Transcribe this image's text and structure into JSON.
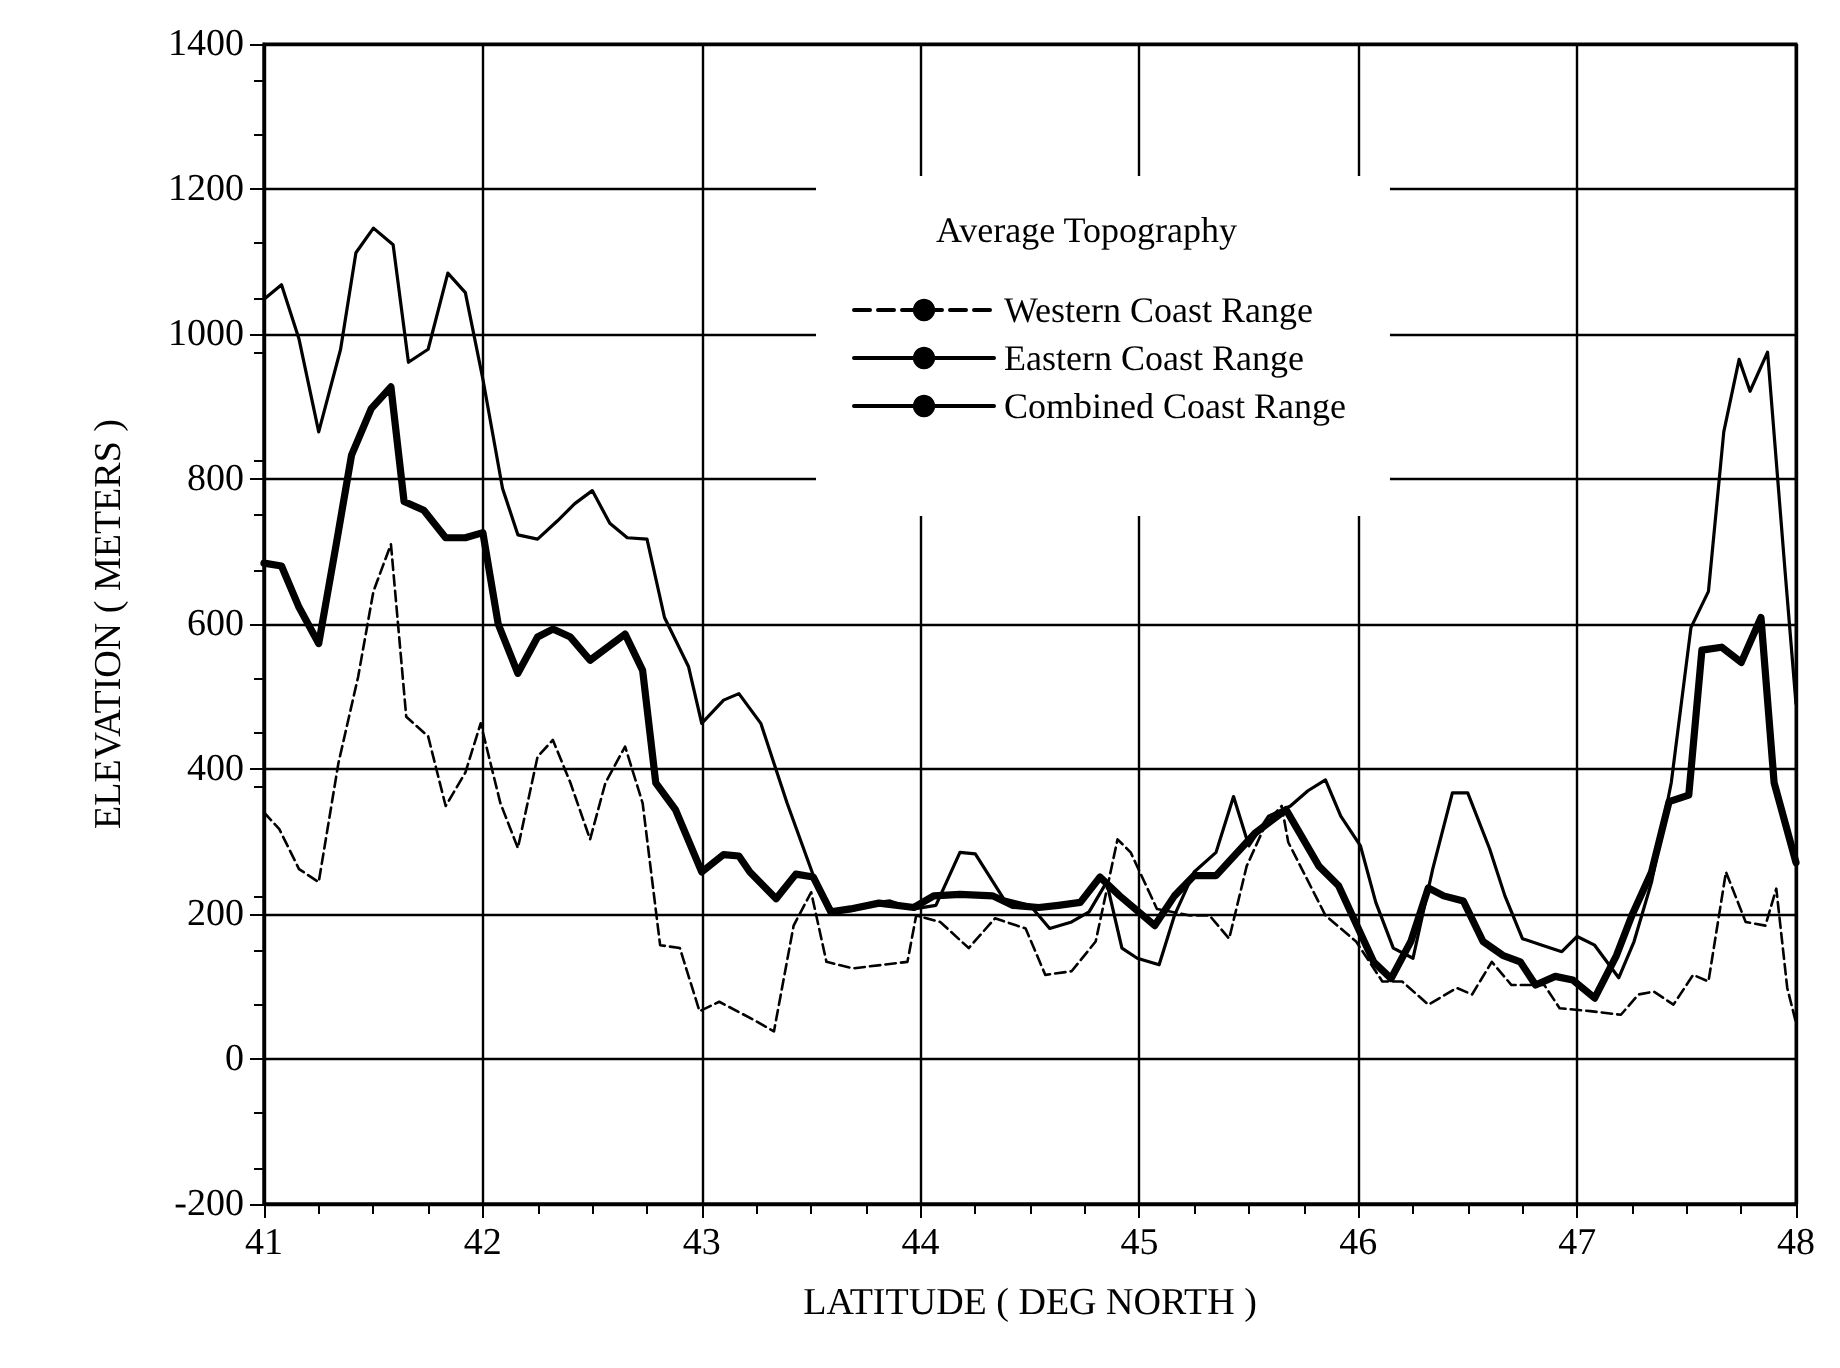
{
  "chart_data": {
    "type": "line",
    "xlabel": "LATITUDE ( DEG NORTH )",
    "ylabel": "ELEVATION ( METERS )",
    "legend_title": "Average Topography",
    "xlim": [
      41,
      48
    ],
    "ylim": [
      -200,
      1400
    ],
    "xticks": [
      41,
      42,
      43,
      44,
      45,
      46,
      47,
      48
    ],
    "yticks": [
      -200,
      0,
      200,
      400,
      600,
      800,
      1000,
      1200,
      1400
    ],
    "grid": true,
    "legend": "top right",
    "marker": "none",
    "series": [
      {
        "name": "Western Coast Range",
        "color": "#000000",
        "line_style": "dashed",
        "x": [
          41.0,
          41.07,
          41.16,
          41.25,
          41.34,
          41.43,
          41.5,
          41.58,
          41.65,
          41.75,
          41.83,
          41.92,
          41.99,
          42.08,
          42.16,
          42.25,
          42.32,
          42.4,
          42.49,
          42.56,
          42.65,
          42.73,
          42.81,
          42.9,
          42.99,
          43.08,
          43.25,
          43.33,
          43.42,
          43.5,
          43.57,
          43.69,
          43.83,
          43.94,
          43.98,
          44.09,
          44.22,
          44.34,
          44.48,
          44.57,
          44.69,
          44.8,
          44.9,
          44.96,
          45.08,
          45.23,
          45.32,
          45.41,
          45.49,
          45.58,
          45.65,
          45.68,
          45.85,
          45.99,
          46.11,
          46.2,
          46.32,
          46.45,
          46.52,
          46.61,
          46.7,
          46.85,
          46.92,
          47.06,
          47.2,
          47.28,
          47.35,
          47.44,
          47.53,
          47.6,
          47.68,
          47.77,
          47.86,
          47.91,
          47.96,
          48.0
        ],
        "values": [
          340,
          317,
          262,
          244,
          408,
          527,
          645,
          710,
          472,
          445,
          349,
          395,
          463,
          353,
          291,
          417,
          440,
          381,
          303,
          381,
          431,
          353,
          157,
          153,
          66,
          79,
          52,
          38,
          184,
          230,
          134,
          125,
          130,
          134,
          198,
          189,
          153,
          194,
          180,
          116,
          121,
          162,
          303,
          285,
          207,
          198,
          198,
          166,
          266,
          326,
          349,
          299,
          198,
          162,
          107,
          107,
          75,
          98,
          89,
          134,
          102,
          102,
          70,
          66,
          61,
          89,
          93,
          75,
          116,
          107,
          258,
          189,
          184,
          235,
          98,
          50
        ]
      },
      {
        "name": "Eastern Coast Range",
        "color": "#000000",
        "line_style": "solid",
        "x": [
          41.0,
          41.08,
          41.16,
          41.25,
          41.35,
          41.42,
          41.5,
          41.59,
          41.66,
          41.75,
          41.84,
          41.92,
          42.0,
          42.09,
          42.16,
          42.25,
          42.34,
          42.42,
          42.5,
          42.58,
          42.66,
          42.75,
          42.83,
          42.94,
          43.0,
          43.1,
          43.17,
          43.27,
          43.39,
          43.51,
          43.6,
          43.69,
          43.78,
          43.86,
          43.97,
          44.07,
          44.18,
          44.25,
          44.38,
          44.5,
          44.59,
          44.69,
          44.77,
          44.85,
          44.92,
          44.99,
          45.09,
          45.16,
          45.25,
          45.35,
          45.43,
          45.5,
          45.59,
          45.69,
          45.77,
          45.85,
          45.92,
          46.01,
          46.08,
          46.16,
          46.25,
          46.34,
          46.43,
          46.5,
          46.6,
          46.67,
          46.75,
          46.84,
          46.93,
          47.0,
          47.08,
          47.19,
          47.26,
          47.34,
          47.43,
          47.52,
          47.6,
          47.67,
          47.74,
          47.79,
          47.87,
          47.95,
          48.0
        ],
        "values": [
          1048,
          1068,
          993,
          865,
          979,
          1112,
          1146,
          1123,
          961,
          979,
          1084,
          1057,
          938,
          787,
          723,
          717,
          742,
          766,
          784,
          739,
          719,
          717,
          609,
          541,
          463,
          495,
          504,
          463,
          353,
          253,
          203,
          205,
          215,
          218,
          207,
          212,
          285,
          283,
          221,
          212,
          180,
          189,
          203,
          244,
          153,
          139,
          130,
          198,
          258,
          285,
          362,
          294,
          335,
          349,
          370,
          385,
          335,
          294,
          216,
          153,
          139,
          262,
          367,
          367,
          290,
          225,
          166,
          157,
          148,
          169,
          157,
          112,
          162,
          244,
          381,
          595,
          645,
          865,
          965,
          921,
          975,
          673,
          490
        ]
      },
      {
        "name": "Combined Coast Range",
        "color": "#000000",
        "line_style": "solid",
        "x": [
          41.0,
          41.08,
          41.16,
          41.25,
          41.33,
          41.4,
          41.49,
          41.58,
          41.64,
          41.73,
          41.83,
          41.92,
          42.0,
          42.07,
          42.16,
          42.25,
          42.32,
          42.4,
          42.49,
          42.65,
          42.73,
          42.79,
          42.88,
          43.0,
          43.1,
          43.17,
          43.22,
          43.34,
          43.43,
          43.51,
          43.59,
          43.68,
          43.81,
          43.97,
          44.06,
          44.18,
          44.33,
          44.42,
          44.54,
          44.63,
          44.73,
          44.82,
          44.91,
          45.07,
          45.16,
          45.25,
          45.35,
          45.53,
          45.67,
          45.82,
          45.91,
          46.0,
          46.07,
          46.15,
          46.24,
          46.32,
          46.39,
          46.48,
          46.57,
          46.66,
          46.74,
          46.81,
          46.9,
          46.98,
          47.08,
          47.18,
          47.25,
          47.34,
          47.42,
          47.51,
          47.57,
          47.66,
          47.75,
          47.84,
          47.9,
          48.0
        ],
        "values": [
          684,
          680,
          623,
          573,
          710,
          833,
          897,
          927,
          769,
          757,
          719,
          719,
          726,
          600,
          532,
          582,
          593,
          582,
          550,
          586,
          536,
          381,
          344,
          258,
          282,
          280,
          258,
          221,
          255,
          251,
          203,
          207,
          215,
          209,
          225,
          227,
          225,
          212,
          209,
          212,
          216,
          251,
          225,
          184,
          225,
          253,
          253,
          312,
          344,
          266,
          239,
          180,
          134,
          111,
          162,
          236,
          225,
          218,
          162,
          143,
          134,
          102,
          114,
          109,
          84,
          143,
          198,
          258,
          355,
          364,
          564,
          568,
          547,
          609,
          381,
          271
        ]
      }
    ]
  }
}
